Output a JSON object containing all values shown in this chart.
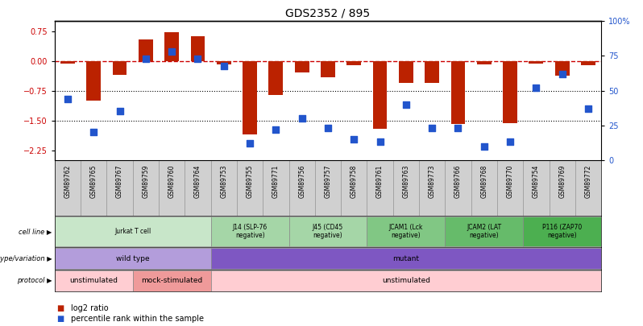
{
  "title": "GDS2352 / 895",
  "samples": [
    "GSM89762",
    "GSM89765",
    "GSM89767",
    "GSM89759",
    "GSM89760",
    "GSM89764",
    "GSM89753",
    "GSM89755",
    "GSM89771",
    "GSM89756",
    "GSM89757",
    "GSM89758",
    "GSM89761",
    "GSM89763",
    "GSM89773",
    "GSM89766",
    "GSM89768",
    "GSM89770",
    "GSM89754",
    "GSM89769",
    "GSM89772"
  ],
  "log2_ratio": [
    -0.07,
    -1.0,
    -0.35,
    0.55,
    0.72,
    0.62,
    -0.08,
    -1.85,
    -0.85,
    -0.3,
    -0.42,
    -0.1,
    -1.72,
    -0.55,
    -0.55,
    -1.6,
    -0.08,
    -1.58,
    -0.06,
    -0.38,
    -0.1
  ],
  "percentile": [
    44,
    20,
    35,
    73,
    78,
    73,
    68,
    12,
    22,
    30,
    23,
    15,
    13,
    40,
    23,
    23,
    10,
    13,
    52,
    62,
    37
  ],
  "bar_color": "#bb2200",
  "dot_color": "#2255cc",
  "ylim_left": [
    -2.5,
    1.0
  ],
  "yticks_left": [
    0.75,
    0.0,
    -0.75,
    -1.5,
    -2.25
  ],
  "yticks_right": [
    100,
    75,
    50,
    25,
    0
  ],
  "hlines": [
    -0.75,
    -1.5
  ],
  "bar_width": 0.55,
  "dot_size": 28,
  "bg": "#ffffff",
  "dashed_color": "#cc0000",
  "sample_bg": "#d0d0d0",
  "cell_line_groups": [
    {
      "label": "Jurkat T cell",
      "start": 0,
      "end": 5,
      "color": "#c8e6c9"
    },
    {
      "label": "J14 (SLP-76\nnegative)",
      "start": 6,
      "end": 8,
      "color": "#a5d6a7"
    },
    {
      "label": "J45 (CD45\nnegative)",
      "start": 9,
      "end": 11,
      "color": "#a5d6a7"
    },
    {
      "label": "JCAM1 (Lck\nnegative)",
      "start": 12,
      "end": 14,
      "color": "#81c784"
    },
    {
      "label": "JCAM2 (LAT\nnegative)",
      "start": 15,
      "end": 17,
      "color": "#66bb6a"
    },
    {
      "label": "P116 (ZAP70\nnegative)",
      "start": 18,
      "end": 20,
      "color": "#4caf50"
    }
  ],
  "genotype_groups": [
    {
      "label": "wild type",
      "start": 0,
      "end": 5,
      "color": "#b39ddb"
    },
    {
      "label": "mutant",
      "start": 6,
      "end": 20,
      "color": "#7e57c2"
    }
  ],
  "protocol_groups": [
    {
      "label": "unstimulated",
      "start": 0,
      "end": 2,
      "color": "#ffcdd2"
    },
    {
      "label": "mock-stimulated",
      "start": 3,
      "end": 5,
      "color": "#ef9a9a"
    },
    {
      "label": "unstimulated",
      "start": 6,
      "end": 20,
      "color": "#ffcdd2"
    }
  ],
  "row_labels": [
    "cell line",
    "genotype/variation",
    "protocol"
  ],
  "legend_red": "log2 ratio",
  "legend_blue": "percentile rank within the sample"
}
